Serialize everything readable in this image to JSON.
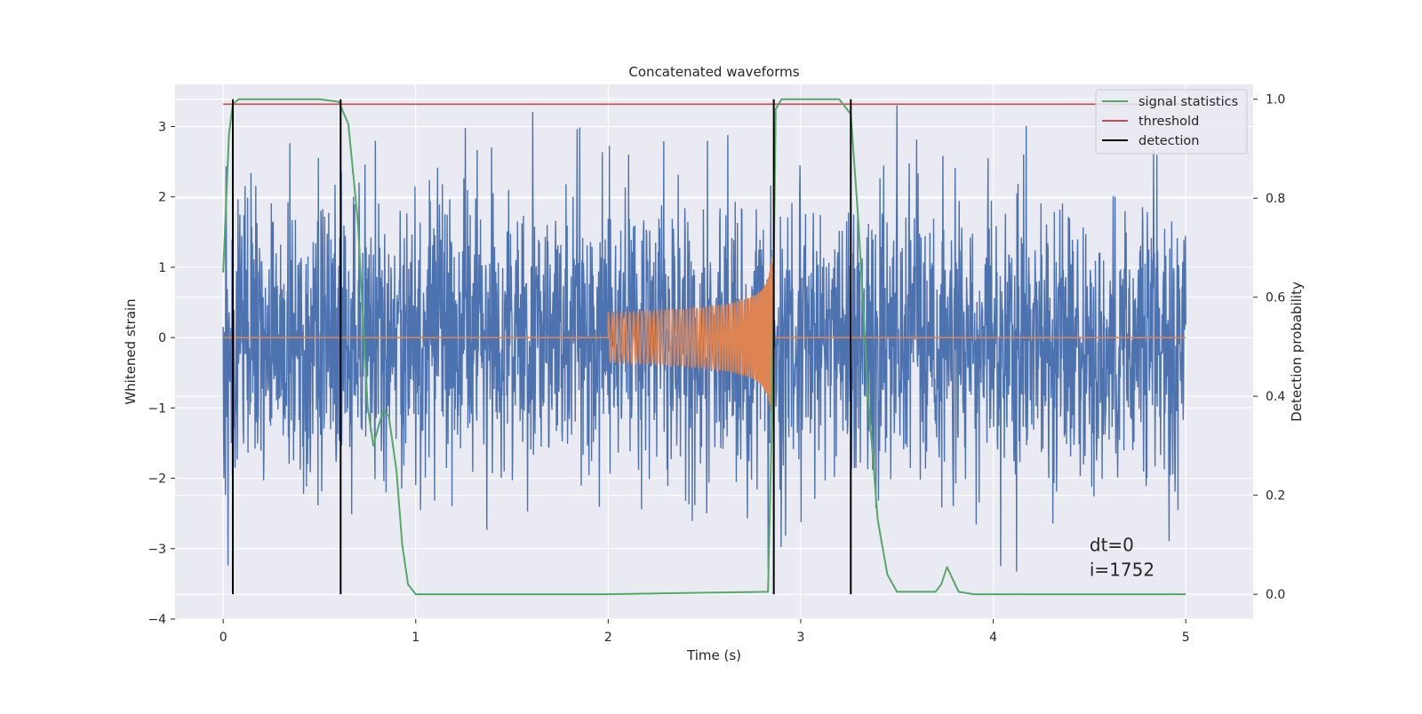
{
  "chart_data": {
    "type": "line",
    "title": "Concatenated waveforms",
    "xlabel": "Time (s)",
    "ylabel_left": "Whitened strain",
    "ylabel_right": "Detection probability",
    "xlim": [
      -0.25,
      5.35
    ],
    "ylim_left": [
      -4,
      3.6
    ],
    "ylim_right": [
      -0.05,
      1.03
    ],
    "x_ticks": [
      0,
      1,
      2,
      3,
      4,
      5
    ],
    "y_left_ticks": [
      -4,
      -3,
      -2,
      -1,
      0,
      1,
      2,
      3
    ],
    "y_right_ticks": [
      0.0,
      0.2,
      0.4,
      0.6,
      0.8,
      1.0
    ],
    "grid": true,
    "legend_position": "top-right",
    "colors": {
      "strain": "#4c72b0",
      "template": "#dd8452",
      "signal_statistics": "#55a868",
      "threshold": "#c44e52",
      "detection": "#000000",
      "plot_bg": "#eaeaf2",
      "grid": "#ffffff"
    },
    "strain_series": {
      "x_range": [
        0,
        5
      ],
      "amplitude_range": [
        -3.4,
        3.3
      ],
      "typical_std": 1.0
    },
    "template_series": {
      "x_range": [
        2.0,
        2.85
      ],
      "peak_amplitude": 1.4,
      "value_outside": 0
    },
    "signal_statistics": {
      "axis": "right",
      "x": [
        0.0,
        0.03,
        0.05,
        0.08,
        0.5,
        0.6,
        0.65,
        0.7,
        0.75,
        0.78,
        0.8,
        0.83,
        0.86,
        0.9,
        0.93,
        0.96,
        1.0,
        2.0,
        2.83,
        2.85,
        2.87,
        2.9,
        3.2,
        3.26,
        3.3,
        3.35,
        3.4,
        3.45,
        3.5,
        3.7,
        3.73,
        3.76,
        3.79,
        3.82,
        3.9,
        5.0
      ],
      "y": [
        0.65,
        0.93,
        0.99,
        1.0,
        1.0,
        0.995,
        0.95,
        0.75,
        0.38,
        0.3,
        0.33,
        0.37,
        0.36,
        0.25,
        0.1,
        0.02,
        0.0,
        0.0,
        0.005,
        0.35,
        0.98,
        1.0,
        1.0,
        0.97,
        0.75,
        0.4,
        0.15,
        0.04,
        0.005,
        0.005,
        0.02,
        0.055,
        0.03,
        0.005,
        0.0,
        0.0
      ]
    },
    "threshold": {
      "axis": "right",
      "x_range": [
        0,
        5
      ],
      "value": 0.99
    },
    "detections": {
      "axis": "right",
      "intervals": [
        [
          0.05,
          0.61
        ],
        [
          2.86,
          3.26
        ]
      ],
      "y_range": [
        0.0,
        1.0
      ]
    },
    "legend": [
      {
        "label": "signal statistics",
        "series": "signal_statistics"
      },
      {
        "label": "threshold",
        "series": "threshold"
      },
      {
        "label": "detection",
        "series": "detection"
      }
    ],
    "annotations": [
      {
        "text": "dt=0",
        "x": 4.5,
        "y_right": 0.1
      },
      {
        "text": "i=1752",
        "x": 4.5,
        "y_right": 0.05
      }
    ]
  }
}
